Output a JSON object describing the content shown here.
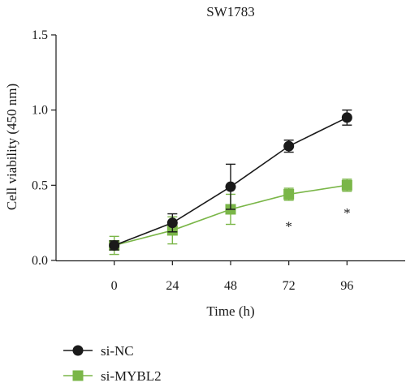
{
  "chart_data": {
    "type": "line",
    "title": "SW1783",
    "xlabel": "Time (h)",
    "ylabel": "Cell viability (450 nm)",
    "x": [
      0,
      24,
      48,
      72,
      96
    ],
    "x_tick_labels": [
      "0",
      "24",
      "48",
      "72",
      "96"
    ],
    "y_tick_labels": [
      "0.0",
      "0.5",
      "1.0",
      "1.5"
    ],
    "y_ticks": [
      0.0,
      0.5,
      1.0,
      1.5
    ],
    "xlim": [
      -24,
      120
    ],
    "ylim": [
      0,
      1.5
    ],
    "grid": false,
    "legend_position": "bottom-left",
    "series": [
      {
        "name": "si-NC",
        "marker": "circle",
        "color": "#1a1a1a",
        "values": [
          0.1,
          0.25,
          0.49,
          0.76,
          0.95
        ],
        "errors": [
          0.03,
          0.06,
          0.15,
          0.04,
          0.05
        ]
      },
      {
        "name": "si-MYBL2",
        "marker": "square",
        "color": "#7ab648",
        "values": [
          0.1,
          0.2,
          0.34,
          0.44,
          0.5
        ],
        "errors": [
          0.06,
          0.09,
          0.1,
          0.04,
          0.04
        ]
      }
    ],
    "annotations": [
      {
        "x": 72,
        "y": 0.24,
        "text": "*"
      },
      {
        "x": 96,
        "y": 0.33,
        "text": "*"
      }
    ]
  }
}
